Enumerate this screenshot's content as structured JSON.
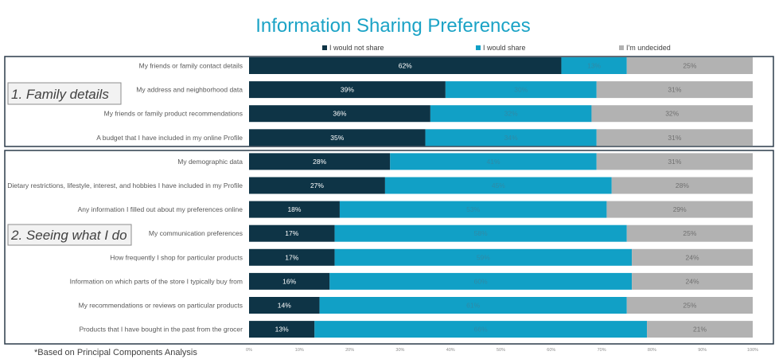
{
  "chart_data": {
    "type": "bar",
    "orientation": "horizontal",
    "stacked": true,
    "title": "Information Sharing Preferences",
    "legend_position": "top",
    "xlim": [
      0,
      100
    ],
    "x_ticks": [
      "0%",
      "10%",
      "20%",
      "30%",
      "40%",
      "50%",
      "60%",
      "70%",
      "80%",
      "90%",
      "100%"
    ],
    "categories": [
      "My friends or family contact details",
      "My address and neighborhood data",
      "My friends or family product recommendations",
      "A budget that I have included in my online Profile",
      "My demographic data",
      "Dietary restrictions, lifestyle, interest, and hobbies I have included in my Profile",
      "Any information I filled out about my preferences online",
      "My communication preferences",
      "How frequently I shop for particular products",
      "Information on which parts of the store I typically buy from",
      "My recommendations or reviews on particular products",
      "Products that I have bought in the past from the grocer"
    ],
    "series": [
      {
        "name": "I would not share",
        "color": "#0e3446",
        "label_color": "#ffffff",
        "values": [
          62,
          39,
          36,
          35,
          28,
          27,
          18,
          17,
          17,
          16,
          14,
          13
        ]
      },
      {
        "name": "I would share",
        "color": "#11a0c6",
        "label_color": "#2f8aa6",
        "values": [
          13,
          30,
          32,
          34,
          41,
          45,
          53,
          58,
          59,
          60,
          61,
          66
        ]
      },
      {
        "name": "I'm undecided",
        "color": "#b2b2b2",
        "label_color": "#707070",
        "values": [
          25,
          31,
          32,
          31,
          31,
          28,
          29,
          25,
          24,
          24,
          25,
          21
        ]
      }
    ],
    "groups": [
      {
        "label": "1. Family details",
        "rows": [
          0,
          3
        ]
      },
      {
        "label": "2. Seeing what I do",
        "rows": [
          4,
          11
        ]
      }
    ],
    "footnote": "*Based on Principal Components Analysis"
  }
}
